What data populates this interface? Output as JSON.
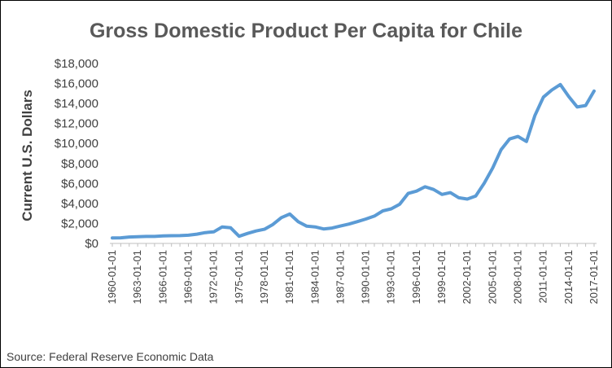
{
  "chart_data": {
    "type": "line",
    "title": "Gross Domestic Product Per Capita for Chile",
    "ylabel": "Current U.S. Dollars",
    "xlabel": "",
    "source": "Source: Federal Reserve Economic Data",
    "ylim": [
      0,
      18000
    ],
    "yticks": [
      0,
      2000,
      4000,
      6000,
      8000,
      10000,
      12000,
      14000,
      16000,
      18000
    ],
    "ytick_labels": [
      "$0",
      "$2,000",
      "$4,000",
      "$6,000",
      "$8,000",
      "$10,000",
      "$12,000",
      "$14,000",
      "$16,000",
      "$18,000"
    ],
    "xtick_labels": [
      "1960-01-01",
      "1963-01-01",
      "1966-01-01",
      "1969-01-01",
      "1972-01-01",
      "1975-01-01",
      "1978-01-01",
      "1981-01-01",
      "1984-01-01",
      "1987-01-01",
      "1990-01-01",
      "1993-01-01",
      "1996-01-01",
      "1999-01-01",
      "2002-01-01",
      "2005-01-01",
      "2008-01-01",
      "2011-01-01",
      "2014-01-01",
      "2017-01-01"
    ],
    "grid": false,
    "line_color": "#5b9bd5",
    "series": [
      {
        "x": [
          "1960-01-01",
          "1961-01-01",
          "1962-01-01",
          "1963-01-01",
          "1964-01-01",
          "1965-01-01",
          "1966-01-01",
          "1967-01-01",
          "1968-01-01",
          "1969-01-01",
          "1970-01-01",
          "1971-01-01",
          "1972-01-01",
          "1973-01-01",
          "1974-01-01",
          "1975-01-01",
          "1976-01-01",
          "1977-01-01",
          "1978-01-01",
          "1979-01-01",
          "1980-01-01",
          "1981-01-01",
          "1982-01-01",
          "1983-01-01",
          "1984-01-01",
          "1985-01-01",
          "1986-01-01",
          "1987-01-01",
          "1988-01-01",
          "1989-01-01",
          "1990-01-01",
          "1991-01-01",
          "1992-01-01",
          "1993-01-01",
          "1994-01-01",
          "1995-01-01",
          "1996-01-01",
          "1997-01-01",
          "1998-01-01",
          "1999-01-01",
          "2000-01-01",
          "2001-01-01",
          "2002-01-01",
          "2003-01-01",
          "2004-01-01",
          "2005-01-01",
          "2006-01-01",
          "2007-01-01",
          "2008-01-01",
          "2009-01-01",
          "2010-01-01",
          "2011-01-01",
          "2012-01-01",
          "2013-01-01",
          "2014-01-01",
          "2015-01-01",
          "2016-01-01",
          "2017-01-01"
        ],
        "values": [
          550,
          560,
          640,
          680,
          700,
          700,
          760,
          770,
          780,
          820,
          930,
          1080,
          1160,
          1650,
          1560,
          720,
          1000,
          1250,
          1420,
          1900,
          2580,
          2940,
          2170,
          1730,
          1650,
          1450,
          1540,
          1740,
          1940,
          2180,
          2440,
          2740,
          3260,
          3460,
          3920,
          5000,
          5240,
          5670,
          5400,
          4900,
          5080,
          4570,
          4440,
          4750,
          6030,
          7550,
          9390,
          10450,
          10700,
          10200,
          12800,
          14640,
          15350,
          15900,
          14700,
          13650,
          13800,
          15250
        ]
      }
    ]
  }
}
